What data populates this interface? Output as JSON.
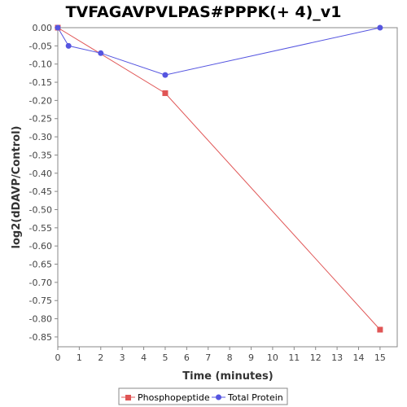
{
  "chart_data": {
    "type": "line",
    "title": "TVFAGAVPVLPAS#PPPK(+ 4)_v1",
    "xlabel": "Time (minutes)",
    "ylabel": "log2(dDAVP/Control)",
    "xlim": [
      0,
      15.8
    ],
    "ylim": [
      -0.877,
      0.0
    ],
    "x_ticks": [
      0,
      1,
      2,
      3,
      4,
      5,
      6,
      7,
      8,
      9,
      10,
      11,
      12,
      13,
      14,
      15
    ],
    "y_ticks": [
      0.0,
      -0.05,
      -0.1,
      -0.15,
      -0.2,
      -0.25,
      -0.3,
      -0.35,
      -0.4,
      -0.45,
      -0.5,
      -0.55,
      -0.6,
      -0.65,
      -0.7,
      -0.75,
      -0.8,
      -0.85
    ],
    "y_tick_labels": [
      "0.00",
      "-0.05",
      "-0.10",
      "-0.15",
      "-0.20",
      "-0.25",
      "-0.30",
      "-0.35",
      "-0.40",
      "-0.45",
      "-0.50",
      "-0.55",
      "-0.60",
      "-0.65",
      "-0.70",
      "-0.75",
      "-0.80",
      "-0.85"
    ],
    "grid": false,
    "legend_position": "bottom",
    "series": [
      {
        "name": "Phosphopeptide",
        "color": "#e05555",
        "marker": "square",
        "x": [
          0,
          5,
          15
        ],
        "y": [
          0.0,
          -0.18,
          -0.83
        ]
      },
      {
        "name": "Total Protein",
        "color": "#5555e0",
        "marker": "circle",
        "x": [
          0,
          0.5,
          2,
          5,
          15
        ],
        "y": [
          0.0,
          -0.05,
          -0.07,
          -0.13,
          0.0
        ]
      }
    ]
  }
}
